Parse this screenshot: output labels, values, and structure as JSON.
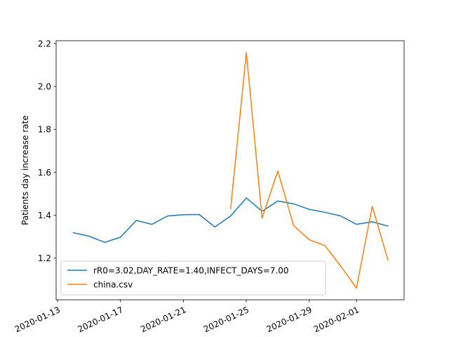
{
  "chart_data": {
    "type": "line",
    "xlabel": "",
    "ylabel": "Patients day increase rate",
    "grid": false,
    "legend_placement": "lower-left",
    "x_tick_labels": [
      "2020-01-13",
      "2020-01-17",
      "2020-01-21",
      "2020-01-25",
      "2020-01-29",
      "2020-02-01"
    ],
    "x_tick_dates": [
      "2020-01-13",
      "2020-01-17",
      "2020-01-21",
      "2020-01-25",
      "2020-01-29",
      "2020-02-01"
    ],
    "y_ticks": [
      1.2,
      1.4,
      1.6,
      1.8,
      2.0,
      2.2
    ],
    "xlim": [
      "2020-01-13",
      "2020-02-03"
    ],
    "ylim": [
      1.0,
      2.2
    ],
    "series": [
      {
        "name": "rR0=3.02,DAY_RATE=1.40,INFECT_DAYS=7.00",
        "color": "#1f77b4",
        "x": [
          "2020-01-14",
          "2020-01-15",
          "2020-01-16",
          "2020-01-17",
          "2020-01-18",
          "2020-01-19",
          "2020-01-20",
          "2020-01-21",
          "2020-01-22",
          "2020-01-23",
          "2020-01-24",
          "2020-01-25",
          "2020-01-26",
          "2020-01-27",
          "2020-01-28",
          "2020-01-29",
          "2020-01-30",
          "2020-01-31",
          "2020-02-01",
          "2020-02-02",
          "2020-02-03"
        ],
        "y": [
          1.318,
          1.302,
          1.273,
          1.297,
          1.375,
          1.357,
          1.396,
          1.402,
          1.403,
          1.345,
          1.396,
          1.48,
          1.418,
          1.466,
          1.453,
          1.427,
          1.413,
          1.396,
          1.357,
          1.369,
          1.349
        ]
      },
      {
        "name": "china.csv",
        "color": "#ff7f0e",
        "x": [
          "2020-01-24",
          "2020-01-25",
          "2020-01-26",
          "2020-01-27",
          "2020-01-28",
          "2020-01-29",
          "2020-01-30",
          "2020-01-31",
          "2020-02-01",
          "2020-02-02",
          "2020-02-03"
        ],
        "y": [
          1.431,
          2.158,
          1.386,
          1.606,
          1.352,
          1.285,
          1.258,
          1.162,
          1.06,
          1.441,
          1.191
        ]
      }
    ]
  }
}
